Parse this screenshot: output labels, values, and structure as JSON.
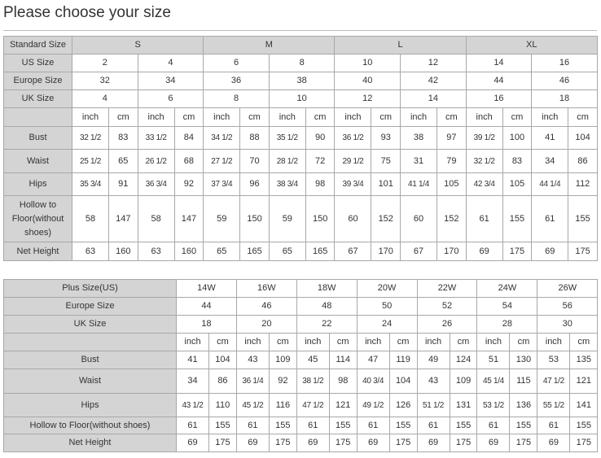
{
  "page_title": "Please choose your size",
  "colors": {
    "header_bg": "#d4d4d4",
    "border": "#a8a8a8",
    "text": "#333333"
  },
  "standard_table": {
    "header_label": "Standard Size",
    "standard_sizes": [
      "S",
      "M",
      "L",
      "XL"
    ],
    "rows": [
      {
        "label": "US Size",
        "values": [
          "2",
          "4",
          "6",
          "8",
          "10",
          "12",
          "14",
          "16"
        ]
      },
      {
        "label": "Europe Size",
        "values": [
          "32",
          "34",
          "36",
          "38",
          "40",
          "42",
          "44",
          "46"
        ]
      },
      {
        "label": "UK Size",
        "values": [
          "4",
          "6",
          "8",
          "10",
          "12",
          "14",
          "16",
          "18"
        ]
      }
    ],
    "units": [
      "inch",
      "cm"
    ],
    "measurements": [
      {
        "label": "Bust",
        "values": [
          "32 1/2",
          "83",
          "33 1/2",
          "84",
          "34 1/2",
          "88",
          "35 1/2",
          "90",
          "36 1/2",
          "93",
          "38",
          "97",
          "39 1/2",
          "100",
          "41",
          "104"
        ]
      },
      {
        "label": "Waist",
        "values": [
          "25 1/2",
          "65",
          "26 1/2",
          "68",
          "27 1/2",
          "70",
          "28 1/2",
          "72",
          "29 1/2",
          "75",
          "31",
          "79",
          "32 1/2",
          "83",
          "34",
          "86"
        ]
      },
      {
        "label": "Hips",
        "values": [
          "35 3/4",
          "91",
          "36 3/4",
          "92",
          "37 3/4",
          "96",
          "38 3/4",
          "98",
          "39 3/4",
          "101",
          "41 1/4",
          "105",
          "42 3/4",
          "105",
          "44 1/4",
          "112"
        ]
      },
      {
        "label": "Hollow to Floor(without shoes)",
        "values": [
          "58",
          "147",
          "58",
          "147",
          "59",
          "150",
          "59",
          "150",
          "60",
          "152",
          "60",
          "152",
          "61",
          "155",
          "61",
          "155"
        ]
      },
      {
        "label": "Net Height",
        "values": [
          "63",
          "160",
          "63",
          "160",
          "65",
          "165",
          "65",
          "165",
          "67",
          "170",
          "67",
          "170",
          "69",
          "175",
          "69",
          "175"
        ]
      }
    ]
  },
  "plus_table": {
    "rows": [
      {
        "label": "Plus Size(US)",
        "values": [
          "14W",
          "16W",
          "18W",
          "20W",
          "22W",
          "24W",
          "26W"
        ]
      },
      {
        "label": "Europe Size",
        "values": [
          "44",
          "46",
          "48",
          "50",
          "52",
          "54",
          "56"
        ]
      },
      {
        "label": "UK Size",
        "values": [
          "18",
          "20",
          "22",
          "24",
          "26",
          "28",
          "30"
        ]
      }
    ],
    "units": [
      "inch",
      "cm"
    ],
    "measurements": [
      {
        "label": "Bust",
        "values": [
          "41",
          "104",
          "43",
          "109",
          "45",
          "114",
          "47",
          "119",
          "49",
          "124",
          "51",
          "130",
          "53",
          "135"
        ]
      },
      {
        "label": "Waist",
        "values": [
          "34",
          "86",
          "36 1/4",
          "92",
          "38 1/2",
          "98",
          "40 3/4",
          "104",
          "43",
          "109",
          "45 1/4",
          "115",
          "47 1/2",
          "121"
        ]
      },
      {
        "label": "Hips",
        "values": [
          "43 1/2",
          "110",
          "45 1/2",
          "116",
          "47 1/2",
          "121",
          "49 1/2",
          "126",
          "51 1/2",
          "131",
          "53 1/2",
          "136",
          "55 1/2",
          "141"
        ]
      },
      {
        "label": "Hollow to Floor(without shoes)",
        "values": [
          "61",
          "155",
          "61",
          "155",
          "61",
          "155",
          "61",
          "155",
          "61",
          "155",
          "61",
          "155",
          "61",
          "155"
        ]
      },
      {
        "label": "Net Height",
        "values": [
          "69",
          "175",
          "69",
          "175",
          "69",
          "175",
          "69",
          "175",
          "69",
          "175",
          "69",
          "175",
          "69",
          "175"
        ]
      }
    ]
  }
}
